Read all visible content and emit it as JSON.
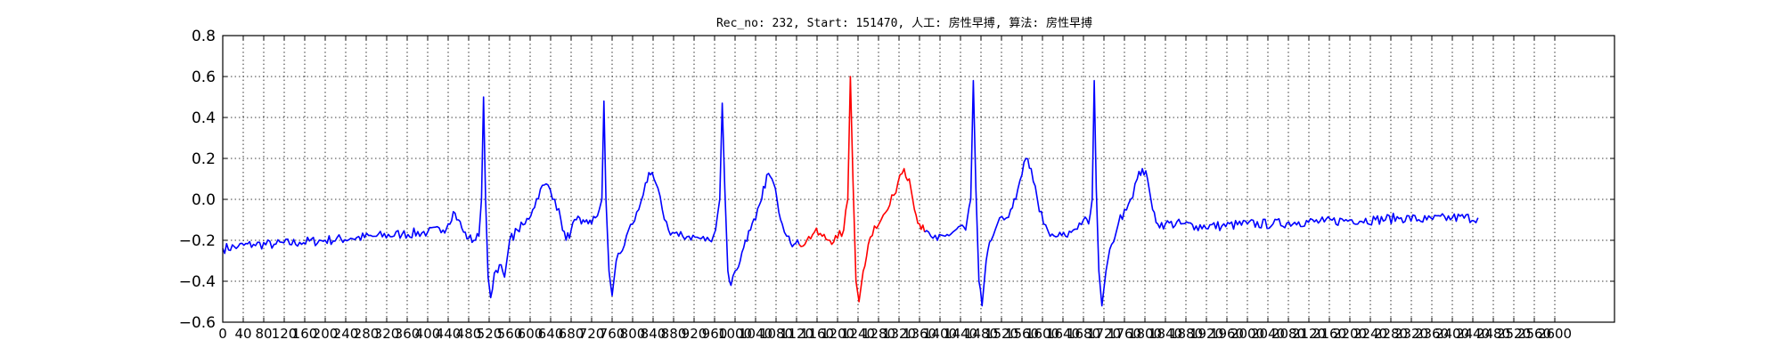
{
  "chart_data": {
    "type": "line",
    "title": "Rec_no: 232, Start: 151470, 人工: 房性早搏, 算法: 房性早搏",
    "xlabel": "",
    "ylabel": "",
    "xlim": [
      0,
      3000
    ],
    "ylim": [
      -0.6,
      0.8
    ],
    "grid": true,
    "x_ticks": [
      0,
      40,
      80,
      120,
      160,
      200,
      240,
      280,
      320,
      360,
      400,
      440,
      480,
      520,
      560,
      600,
      640,
      680,
      720,
      760,
      800,
      840,
      880,
      920,
      960,
      1000,
      1040,
      1080,
      1120,
      1160,
      1200,
      1240,
      1280,
      1320,
      1360,
      1400,
      1440,
      1480,
      1520,
      1560,
      1600,
      1640,
      1680,
      1720,
      1760,
      1800,
      1840,
      1880,
      1920,
      1960,
      2000,
      2040,
      2080,
      2120,
      2160,
      2200,
      2240,
      2280,
      2320,
      2360,
      2400,
      2440,
      2480,
      2520,
      2560,
      2600
    ],
    "x_tick_labels": [
      "0",
      "40",
      "80",
      "120",
      "160",
      "200",
      "240",
      "280",
      "320",
      "360",
      "400",
      "440",
      "480",
      "520",
      "560",
      "600",
      "640",
      "680",
      "720",
      "760",
      "800",
      "840",
      "880",
      "920",
      "960",
      "1000",
      "1040",
      "1080",
      "1120",
      "1160",
      "1200",
      "1240",
      "1280",
      "1320",
      "1360",
      "1400",
      "1440",
      "1480",
      "1520",
      "1560",
      "1600",
      "1640",
      "1680",
      "1720",
      "1760",
      "1800",
      "1840",
      "1880",
      "1920",
      "1960",
      "2000",
      "2040",
      "2080",
      "2120",
      "2160",
      "2200",
      "2240",
      "2280",
      "2320",
      "2360",
      "2400",
      "2440",
      "2480",
      "2520",
      "2560",
      "2600"
    ],
    "y_ticks": [
      -0.6,
      -0.4,
      -0.2,
      0.0,
      0.2,
      0.4,
      0.6,
      0.8
    ],
    "y_tick_labels": [
      "−0.6",
      "−0.4",
      "−0.2",
      "0.0",
      "0.2",
      "0.4",
      "0.6",
      "0.8"
    ],
    "series": [
      {
        "color": "#0000ff",
        "points": [
          [
            0,
            -0.24
          ],
          [
            30,
            -0.23
          ],
          [
            60,
            -0.22
          ],
          [
            100,
            -0.22
          ],
          [
            150,
            -0.21
          ],
          [
            200,
            -0.2
          ],
          [
            250,
            -0.19
          ],
          [
            300,
            -0.18
          ],
          [
            350,
            -0.17
          ],
          [
            400,
            -0.16
          ],
          [
            430,
            -0.15
          ],
          [
            440,
            -0.12
          ],
          [
            450,
            -0.06
          ],
          [
            460,
            -0.1
          ],
          [
            470,
            -0.16
          ],
          [
            480,
            -0.19
          ],
          [
            490,
            -0.2
          ],
          [
            500,
            -0.18
          ],
          [
            505,
            0.0
          ],
          [
            509,
            0.5
          ],
          [
            513,
            0.0
          ],
          [
            518,
            -0.38
          ],
          [
            523,
            -0.48
          ],
          [
            530,
            -0.36
          ],
          [
            540,
            -0.32
          ],
          [
            550,
            -0.38
          ],
          [
            560,
            -0.2
          ],
          [
            575,
            -0.15
          ],
          [
            590,
            -0.12
          ],
          [
            605,
            -0.05
          ],
          [
            620,
            0.05
          ],
          [
            635,
            0.07
          ],
          [
            648,
            0.0
          ],
          [
            660,
            -0.1
          ],
          [
            670,
            -0.2
          ],
          [
            680,
            -0.15
          ],
          [
            690,
            -0.1
          ],
          [
            700,
            -0.12
          ],
          [
            710,
            -0.1
          ],
          [
            720,
            -0.12
          ],
          [
            735,
            -0.05
          ],
          [
            740,
            0.0
          ],
          [
            744,
            0.48
          ],
          [
            748,
            0.0
          ],
          [
            754,
            -0.35
          ],
          [
            760,
            -0.47
          ],
          [
            768,
            -0.3
          ],
          [
            780,
            -0.25
          ],
          [
            792,
            -0.15
          ],
          [
            800,
            -0.12
          ],
          [
            812,
            -0.05
          ],
          [
            825,
            0.08
          ],
          [
            835,
            0.12
          ],
          [
            845,
            0.08
          ],
          [
            858,
            -0.05
          ],
          [
            870,
            -0.15
          ],
          [
            890,
            -0.18
          ],
          [
            910,
            -0.18
          ],
          [
            930,
            -0.19
          ],
          [
            950,
            -0.2
          ],
          [
            962,
            -0.15
          ],
          [
            970,
            0.0
          ],
          [
            975,
            0.47
          ],
          [
            980,
            0.05
          ],
          [
            986,
            -0.35
          ],
          [
            992,
            -0.42
          ],
          [
            1000,
            -0.35
          ],
          [
            1010,
            -0.3
          ],
          [
            1020,
            -0.2
          ],
          [
            1030,
            -0.15
          ],
          [
            1040,
            -0.1
          ],
          [
            1052,
            0.0
          ],
          [
            1062,
            0.12
          ],
          [
            1072,
            0.1
          ],
          [
            1082,
            0.0
          ],
          [
            1092,
            -0.12
          ],
          [
            1105,
            -0.18
          ],
          [
            1115,
            -0.22
          ],
          [
            1125,
            -0.22
          ]
        ],
        "name": ""
      },
      {
        "color": "#ff0000",
        "points": [
          [
            1125,
            -0.22
          ],
          [
            1140,
            -0.2
          ],
          [
            1155,
            -0.16
          ],
          [
            1170,
            -0.18
          ],
          [
            1185,
            -0.2
          ],
          [
            1200,
            -0.19
          ],
          [
            1212,
            -0.15
          ],
          [
            1220,
            0.0
          ],
          [
            1225,
            0.6
          ],
          [
            1230,
            0.1
          ],
          [
            1236,
            -0.4
          ],
          [
            1242,
            -0.5
          ],
          [
            1250,
            -0.35
          ],
          [
            1260,
            -0.22
          ],
          [
            1272,
            -0.13
          ],
          [
            1285,
            -0.1
          ],
          [
            1298,
            -0.05
          ],
          [
            1310,
            0.02
          ],
          [
            1322,
            0.12
          ],
          [
            1330,
            0.15
          ],
          [
            1340,
            0.1
          ],
          [
            1350,
            -0.05
          ],
          [
            1360,
            -0.12
          ],
          [
            1370,
            -0.16
          ]
        ],
        "name": ""
      },
      {
        "color": "#0000ff",
        "points": [
          [
            1370,
            -0.16
          ],
          [
            1382,
            -0.18
          ],
          [
            1395,
            -0.2
          ],
          [
            1410,
            -0.18
          ],
          [
            1425,
            -0.16
          ],
          [
            1440,
            -0.13
          ],
          [
            1450,
            -0.15
          ],
          [
            1460,
            0.0
          ],
          [
            1465,
            0.58
          ],
          [
            1470,
            0.05
          ],
          [
            1476,
            -0.4
          ],
          [
            1482,
            -0.52
          ],
          [
            1490,
            -0.3
          ],
          [
            1500,
            -0.2
          ],
          [
            1512,
            -0.12
          ],
          [
            1525,
            -0.1
          ],
          [
            1538,
            -0.05
          ],
          [
            1548,
            0.0
          ],
          [
            1560,
            0.12
          ],
          [
            1568,
            0.2
          ],
          [
            1578,
            0.15
          ],
          [
            1590,
            0.0
          ],
          [
            1602,
            -0.12
          ],
          [
            1615,
            -0.18
          ],
          [
            1630,
            -0.18
          ],
          [
            1645,
            -0.18
          ],
          [
            1660,
            -0.15
          ],
          [
            1680,
            -0.1
          ],
          [
            1690,
            -0.12
          ],
          [
            1697,
            0.0
          ],
          [
            1701,
            0.58
          ],
          [
            1705,
            0.05
          ],
          [
            1710,
            -0.35
          ],
          [
            1716,
            -0.52
          ],
          [
            1724,
            -0.35
          ],
          [
            1735,
            -0.22
          ],
          [
            1748,
            -0.12
          ],
          [
            1760,
            -0.05
          ],
          [
            1772,
            0.0
          ],
          [
            1785,
            0.1
          ],
          [
            1795,
            0.15
          ],
          [
            1805,
            0.1
          ],
          [
            1815,
            -0.05
          ],
          [
            1825,
            -0.12
          ],
          [
            1840,
            -0.12
          ],
          [
            1870,
            -0.12
          ],
          [
            1900,
            -0.13
          ],
          [
            1950,
            -0.13
          ],
          [
            2000,
            -0.12
          ],
          [
            2050,
            -0.12
          ],
          [
            2100,
            -0.11
          ],
          [
            2150,
            -0.11
          ],
          [
            2200,
            -0.1
          ],
          [
            2250,
            -0.1
          ],
          [
            2300,
            -0.09
          ],
          [
            2350,
            -0.1
          ],
          [
            2400,
            -0.09
          ],
          [
            2450,
            -0.09
          ]
        ],
        "name": ""
      }
    ]
  }
}
